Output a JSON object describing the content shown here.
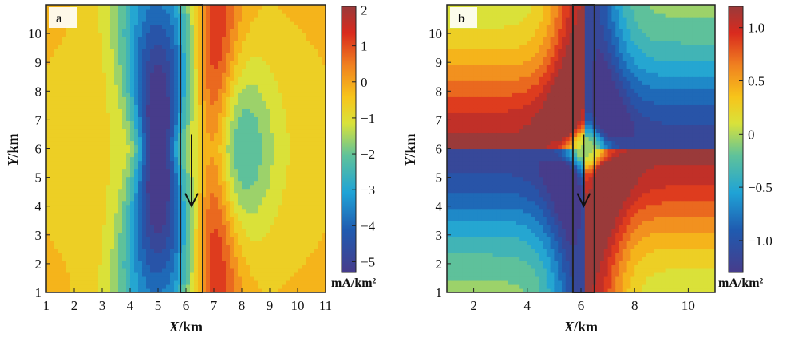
{
  "chart_data": [
    {
      "type": "heatmap",
      "panel_label": "a",
      "xlabel_var": "X",
      "xlabel_unit": "/km",
      "ylabel_var": "Y",
      "ylabel_unit": "/km",
      "xlim": [
        1,
        11
      ],
      "ylim": [
        1,
        11
      ],
      "xticks": [
        "1",
        "2",
        "3",
        "4",
        "5",
        "6",
        "7",
        "8",
        "9",
        "10",
        "11"
      ],
      "yticks": [
        "1",
        "2",
        "3",
        "4",
        "5",
        "6",
        "7",
        "8",
        "9",
        "10"
      ],
      "colorbar": {
        "min": -5.3,
        "max": 2.1,
        "ticks": [
          -5,
          -4,
          -3,
          -2,
          -1,
          0,
          1,
          2
        ],
        "tick_labels": [
          "−5",
          "−4",
          "−3",
          "−2",
          "−1",
          "0",
          "1",
          "2"
        ],
        "unit": "mA/km²"
      },
      "field": {
        "background": -0.3,
        "negative_anomaly": {
          "x": 5.0,
          "y": 6.0,
          "value": -5.2
        },
        "positive_anomaly": {
          "x": 7.0,
          "y_min": 1.0,
          "y_max": 11.0,
          "value": 2.0
        },
        "secondary_negative": {
          "x": 8.0,
          "y": 6.0,
          "value": -1.6
        }
      },
      "source_region": {
        "x_min": 5.8,
        "x_max": 6.6,
        "y_min": 1,
        "y_max": 11
      },
      "arrow": {
        "x": 6.2,
        "y_from": 6.5,
        "y_to": 4.0,
        "direction": "negative-y"
      }
    },
    {
      "type": "heatmap",
      "panel_label": "b",
      "xlabel_var": "X",
      "xlabel_unit": "/km",
      "ylabel_var": "Y",
      "ylabel_unit": "/km",
      "xlim": [
        1,
        11
      ],
      "ylim": [
        1,
        11
      ],
      "xticks": [
        "2",
        "4",
        "6",
        "8",
        "10"
      ],
      "yticks": [
        "1",
        "2",
        "3",
        "4",
        "5",
        "6",
        "7",
        "8",
        "9",
        "10"
      ],
      "colorbar": {
        "min": -1.3,
        "max": 1.2,
        "ticks": [
          -1.0,
          -0.5,
          0,
          0.5,
          1.0
        ],
        "tick_labels": [
          "−1.0",
          "−0.5",
          "0",
          "0.5",
          "1.0"
        ],
        "unit": "mA/km²"
      },
      "field": {
        "pattern": "quadrupole cross",
        "center": {
          "x": 6.2,
          "y": 6.0
        },
        "peak_value": 1.1,
        "trough_value": -1.2
      },
      "source_region": {
        "x_min": 5.7,
        "x_max": 6.5,
        "y_min": 1,
        "y_max": 11
      },
      "arrow": {
        "x": 6.1,
        "y_from": 6.5,
        "y_to": 4.0,
        "direction": "negative-y"
      }
    }
  ]
}
